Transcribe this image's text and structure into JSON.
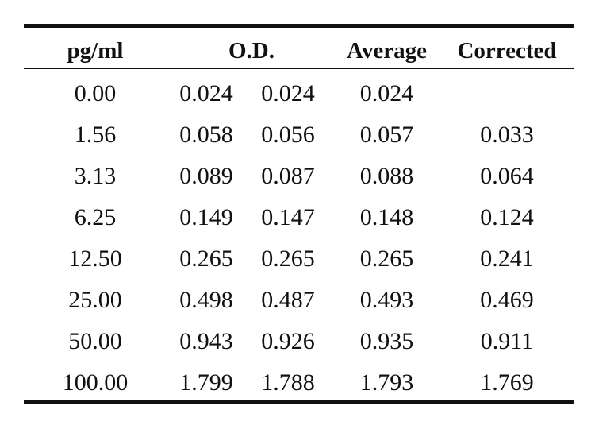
{
  "table": {
    "headers": {
      "concentration": "pg/ml",
      "od": "O.D.",
      "average": "Average",
      "corrected": "Corrected"
    },
    "rows": [
      {
        "conc": "0.00",
        "od1": "0.024",
        "od2": "0.024",
        "avg": "0.024",
        "corr": ""
      },
      {
        "conc": "1.56",
        "od1": "0.058",
        "od2": "0.056",
        "avg": "0.057",
        "corr": "0.033"
      },
      {
        "conc": "3.13",
        "od1": "0.089",
        "od2": "0.087",
        "avg": "0.088",
        "corr": "0.064"
      },
      {
        "conc": "6.25",
        "od1": "0.149",
        "od2": "0.147",
        "avg": "0.148",
        "corr": "0.124"
      },
      {
        "conc": "12.50",
        "od1": "0.265",
        "od2": "0.265",
        "avg": "0.265",
        "corr": "0.241"
      },
      {
        "conc": "25.00",
        "od1": "0.498",
        "od2": "0.487",
        "avg": "0.493",
        "corr": "0.469"
      },
      {
        "conc": "50.00",
        "od1": "0.943",
        "od2": "0.926",
        "avg": "0.935",
        "corr": "0.911"
      },
      {
        "conc": "100.00",
        "od1": "1.799",
        "od2": "1.788",
        "avg": "1.793",
        "corr": "1.769"
      }
    ]
  }
}
